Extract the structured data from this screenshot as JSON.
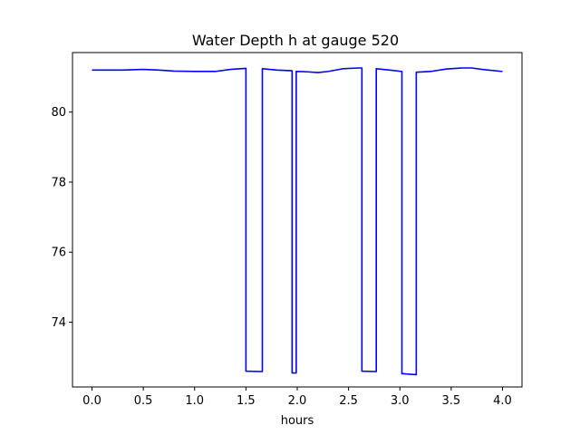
{
  "chart_data": {
    "type": "line",
    "title": "Water Depth h at gauge 520",
    "xlabel": "hours",
    "ylabel": "",
    "xlim": [
      -0.19,
      4.19
    ],
    "ylim": [
      72.15,
      81.7
    ],
    "grid": false,
    "xticks": [
      0.0,
      0.5,
      1.0,
      1.5,
      2.0,
      2.5,
      3.0,
      3.5,
      4.0
    ],
    "xtick_labels": [
      "0.0",
      "0.5",
      "1.0",
      "1.5",
      "2.0",
      "2.5",
      "3.0",
      "3.5",
      "4.0"
    ],
    "yticks": [
      74,
      76,
      78,
      80
    ],
    "ytick_labels": [
      "74",
      "76",
      "78",
      "80"
    ],
    "series": [
      {
        "color": "#0000ff",
        "x": [
          0.0,
          0.3,
          0.5,
          0.65,
          0.8,
          1.0,
          1.2,
          1.35,
          1.5,
          1.5,
          1.66,
          1.66,
          1.8,
          1.95,
          1.95,
          1.99,
          1.99,
          2.1,
          2.2,
          2.3,
          2.45,
          2.6,
          2.63,
          2.63,
          2.77,
          2.77,
          2.9,
          3.02,
          3.02,
          3.16,
          3.16,
          3.3,
          3.45,
          3.6,
          3.7,
          3.8,
          4.0
        ],
        "y": [
          81.2,
          81.2,
          81.22,
          81.2,
          81.17,
          81.16,
          81.16,
          81.22,
          81.25,
          72.6,
          72.59,
          81.24,
          81.2,
          81.18,
          72.55,
          72.55,
          81.16,
          81.15,
          81.13,
          81.16,
          81.24,
          81.26,
          81.26,
          72.6,
          72.59,
          81.24,
          81.2,
          81.16,
          72.53,
          72.5,
          81.14,
          81.16,
          81.23,
          81.26,
          81.26,
          81.22,
          81.16
        ]
      }
    ]
  }
}
